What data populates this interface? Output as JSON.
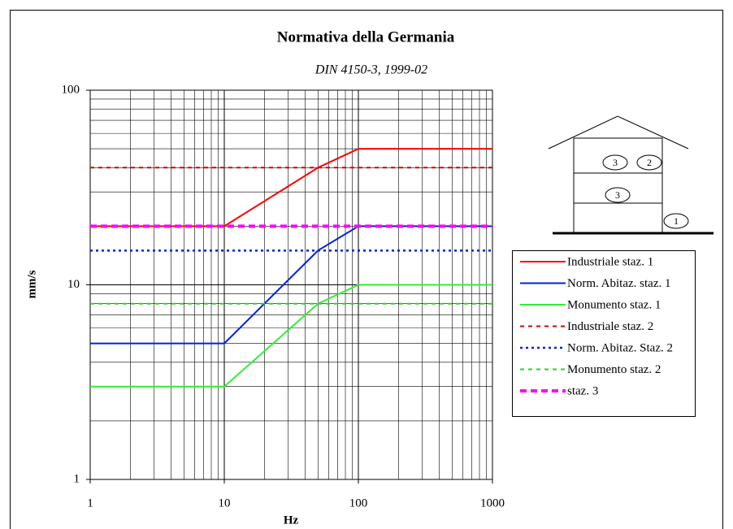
{
  "chart_data": {
    "type": "line",
    "title": "Normativa della Germania",
    "subtitle": "DIN 4150-3, 1999-02",
    "xlabel": "Hz",
    "ylabel": "mm/s",
    "xscale": "log",
    "yscale": "log",
    "xlim": [
      1,
      1000
    ],
    "ylim": [
      1,
      100
    ],
    "xticks": [
      1,
      10,
      100,
      1000
    ],
    "yticks": [
      1,
      10,
      100
    ],
    "grid": true,
    "legend": "right",
    "x": [
      1,
      10,
      50,
      100,
      1000
    ],
    "series": [
      {
        "name": "Industriale staz. 1",
        "color": "#ff0000",
        "linestyle": "solid",
        "values": [
          20,
          20,
          40,
          50,
          50
        ]
      },
      {
        "name": "Norm. Abitaz. staz. 1",
        "color": "#0022dd",
        "linestyle": "solid",
        "values": [
          5,
          5,
          15,
          20,
          20
        ]
      },
      {
        "name": "Monumento staz. 1",
        "color": "#33ee33",
        "linestyle": "solid",
        "values": [
          3,
          3,
          8,
          10,
          10
        ]
      },
      {
        "name": "Industriale staz. 2",
        "color": "#dd0000",
        "linestyle": "dashed",
        "values": [
          40,
          40,
          40,
          40,
          40
        ]
      },
      {
        "name": "Norm. Abitaz. Staz. 2",
        "color": "#0022dd",
        "linestyle": "dotted",
        "values": [
          15,
          15,
          15,
          15,
          15
        ]
      },
      {
        "name": "Monumento staz. 2",
        "color": "#33cc33",
        "linestyle": "dashed",
        "values": [
          8,
          8,
          8,
          8,
          8
        ]
      },
      {
        "name": "staz. 3",
        "color": "#ff00ff",
        "linestyle": "thick-dashed",
        "values": [
          20,
          20,
          20,
          20,
          20
        ]
      }
    ],
    "building_labels": [
      "3",
      "2",
      "3",
      "1"
    ]
  }
}
